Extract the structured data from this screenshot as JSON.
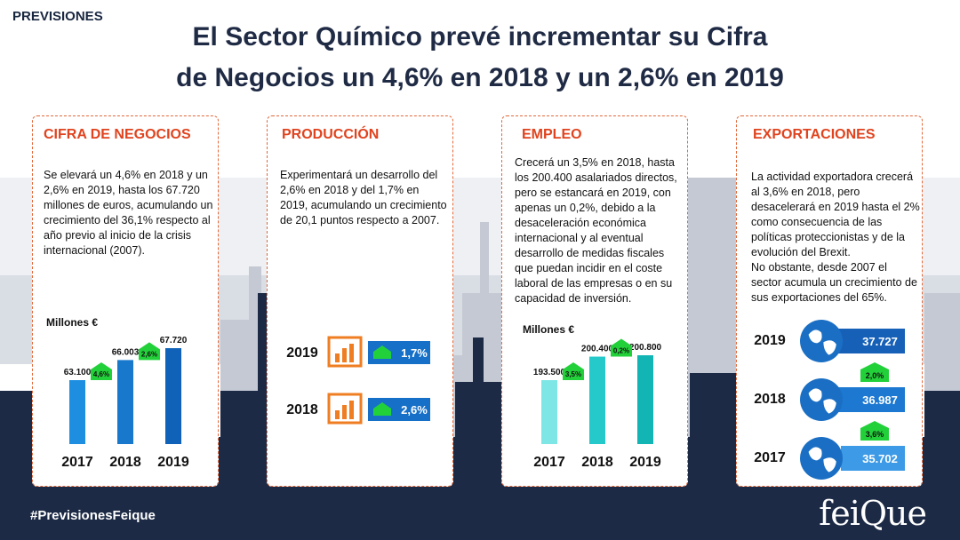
{
  "header": {
    "tag": "PREVISIONES",
    "title_line1": "El Sector Químico prevé incrementar su Cifra",
    "title_line2": "de Negocios un 4,6% en 2018 y un 2,6% en 2019"
  },
  "cards": {
    "cifra": {
      "title": "CIFRA DE NEGOCIOS",
      "text": "Se elevará un 4,6% en 2018 y un 2,6% en 2019, hasta los 67.720 millones de euros, acumulando un crecimiento del 36,1% respecto al año previo al inicio de la crisis internacional (2007).",
      "unit": "Millones €"
    },
    "produccion": {
      "title": "PRODUCCIÓN",
      "text": "Experimentará un desarrollo del 2,6% en 2018 y del 1,7% en 2019, acumulando un crecimiento de 20,1 puntos respecto a 2007."
    },
    "empleo": {
      "title": "EMPLEO",
      "text": "Crecerá un 3,5% en 2018, hasta los 200.400 asalariados directos, pero se estancará en 2019, con apenas un 0,2%, debido a la desaceleración económica internacional y al eventual desarrollo de medidas fiscales que puedan incidir en el coste laboral de las empresas o en su capacidad de inversión.",
      "unit": "Millones €"
    },
    "exportaciones": {
      "title": "EXPORTACIONES",
      "text": "La actividad exportadora crecerá al 3,6% en 2018, pero desacelerará en 2019 hasta el 2% como consecuencia de las políticas proteccionistas y de la evolución del Brexit.\nNo obstante, desde 2007 el sector acumula un crecimiento de sus exportaciones del 65%."
    }
  },
  "chart_data": [
    {
      "type": "bar",
      "categories": [
        "2017",
        "2018",
        "2019"
      ],
      "values": [
        63100,
        66003,
        67720
      ],
      "value_labels": [
        "63.100",
        "66.003",
        "67.720"
      ],
      "growth_labels": [
        "4,6%",
        "2,6%"
      ],
      "ylabel": "Millones €",
      "colors": [
        "#1e8fe0",
        "#1878cc",
        "#1062b8"
      ]
    },
    {
      "type": "bar",
      "categories": [
        "2019",
        "2018"
      ],
      "values": [
        1.7,
        2.6
      ],
      "value_labels": [
        "1,7%",
        "2,6%"
      ],
      "colors": [
        "#1670c8",
        "#1670c8"
      ]
    },
    {
      "type": "bar",
      "categories": [
        "2017",
        "2018",
        "2019"
      ],
      "values": [
        193500,
        200400,
        200800
      ],
      "value_labels": [
        "193.500",
        "200.400",
        "200.800"
      ],
      "growth_labels": [
        "3,5%",
        "0,2%"
      ],
      "ylabel": "Millones €",
      "colors": [
        "#7fe6e6",
        "#25c9c9",
        "#12b4b4"
      ]
    },
    {
      "type": "bar",
      "categories": [
        "2019",
        "2018",
        "2017"
      ],
      "values": [
        37727,
        36987,
        35702
      ],
      "value_labels": [
        "37.727",
        "36.987",
        "35.702"
      ],
      "growth_labels": [
        "2,0%",
        "3,6%"
      ],
      "colors": [
        "#1660b8",
        "#1c78d0",
        "#3c9ae6"
      ]
    }
  ],
  "footer": {
    "hashtag": "#PrevisionesFeique",
    "logo": "feiQue"
  }
}
